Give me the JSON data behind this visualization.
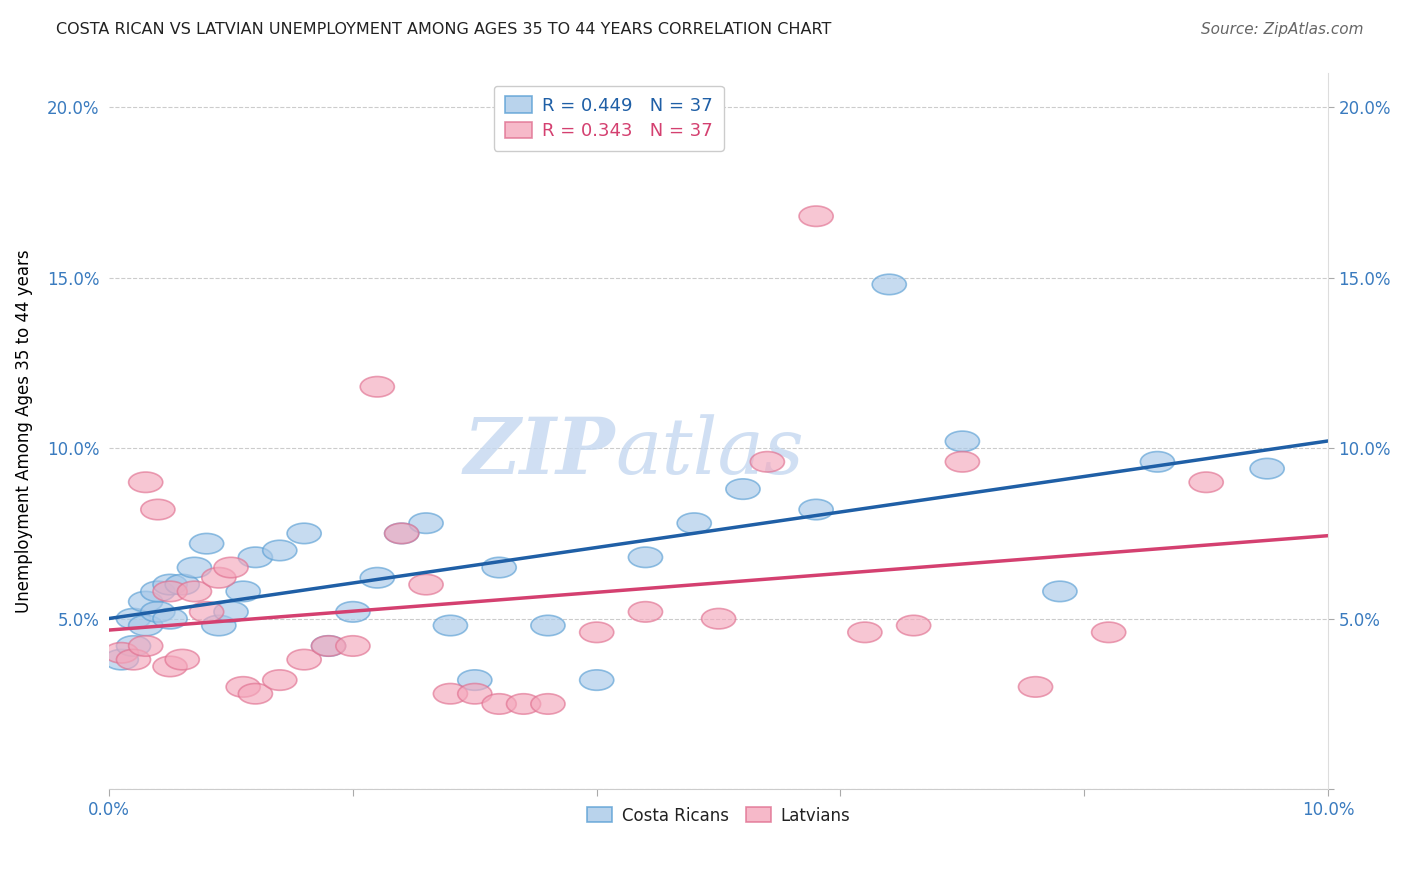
{
  "title": "COSTA RICAN VS LATVIAN UNEMPLOYMENT AMONG AGES 35 TO 44 YEARS CORRELATION CHART",
  "source": "Source: ZipAtlas.com",
  "ylabel": "Unemployment Among Ages 35 to 44 years",
  "xlim": [
    0.0,
    0.1
  ],
  "ylim": [
    0.0,
    0.21
  ],
  "xticks": [
    0.0,
    0.02,
    0.04,
    0.06,
    0.08,
    0.1
  ],
  "yticks": [
    0.0,
    0.05,
    0.1,
    0.15,
    0.2
  ],
  "watermark_zip": "ZIP",
  "watermark_atlas": "atlas",
  "blue_R": 0.449,
  "blue_N": 37,
  "pink_R": 0.343,
  "pink_N": 37,
  "blue_fill": "#a8c8e8",
  "blue_edge": "#5a9fd4",
  "pink_fill": "#f4a8bc",
  "pink_edge": "#e07090",
  "blue_line_color": "#1f5fa6",
  "pink_line_color": "#d44070",
  "background_color": "#ffffff",
  "grid_color": "#cccccc",
  "costa_rica_x": [
    0.001,
    0.002,
    0.002,
    0.003,
    0.003,
    0.004,
    0.004,
    0.005,
    0.005,
    0.006,
    0.007,
    0.008,
    0.009,
    0.01,
    0.011,
    0.012,
    0.014,
    0.016,
    0.018,
    0.02,
    0.022,
    0.024,
    0.026,
    0.028,
    0.03,
    0.032,
    0.036,
    0.04,
    0.044,
    0.048,
    0.052,
    0.058,
    0.064,
    0.07,
    0.078,
    0.086,
    0.095
  ],
  "costa_rica_y": [
    0.038,
    0.042,
    0.05,
    0.048,
    0.055,
    0.052,
    0.058,
    0.05,
    0.06,
    0.06,
    0.065,
    0.072,
    0.048,
    0.052,
    0.058,
    0.068,
    0.07,
    0.075,
    0.042,
    0.052,
    0.062,
    0.075,
    0.078,
    0.048,
    0.032,
    0.065,
    0.048,
    0.032,
    0.068,
    0.078,
    0.088,
    0.082,
    0.148,
    0.102,
    0.058,
    0.096,
    0.094
  ],
  "latvia_x": [
    0.001,
    0.002,
    0.003,
    0.003,
    0.004,
    0.005,
    0.005,
    0.006,
    0.007,
    0.008,
    0.009,
    0.01,
    0.011,
    0.012,
    0.014,
    0.016,
    0.018,
    0.02,
    0.022,
    0.024,
    0.026,
    0.028,
    0.03,
    0.032,
    0.034,
    0.036,
    0.04,
    0.044,
    0.05,
    0.054,
    0.058,
    0.062,
    0.066,
    0.07,
    0.076,
    0.082,
    0.09
  ],
  "latvia_y": [
    0.04,
    0.038,
    0.09,
    0.042,
    0.082,
    0.036,
    0.058,
    0.038,
    0.058,
    0.052,
    0.062,
    0.065,
    0.03,
    0.028,
    0.032,
    0.038,
    0.042,
    0.042,
    0.118,
    0.075,
    0.06,
    0.028,
    0.028,
    0.025,
    0.025,
    0.025,
    0.046,
    0.052,
    0.05,
    0.096,
    0.168,
    0.046,
    0.048,
    0.096,
    0.03,
    0.046,
    0.09
  ]
}
